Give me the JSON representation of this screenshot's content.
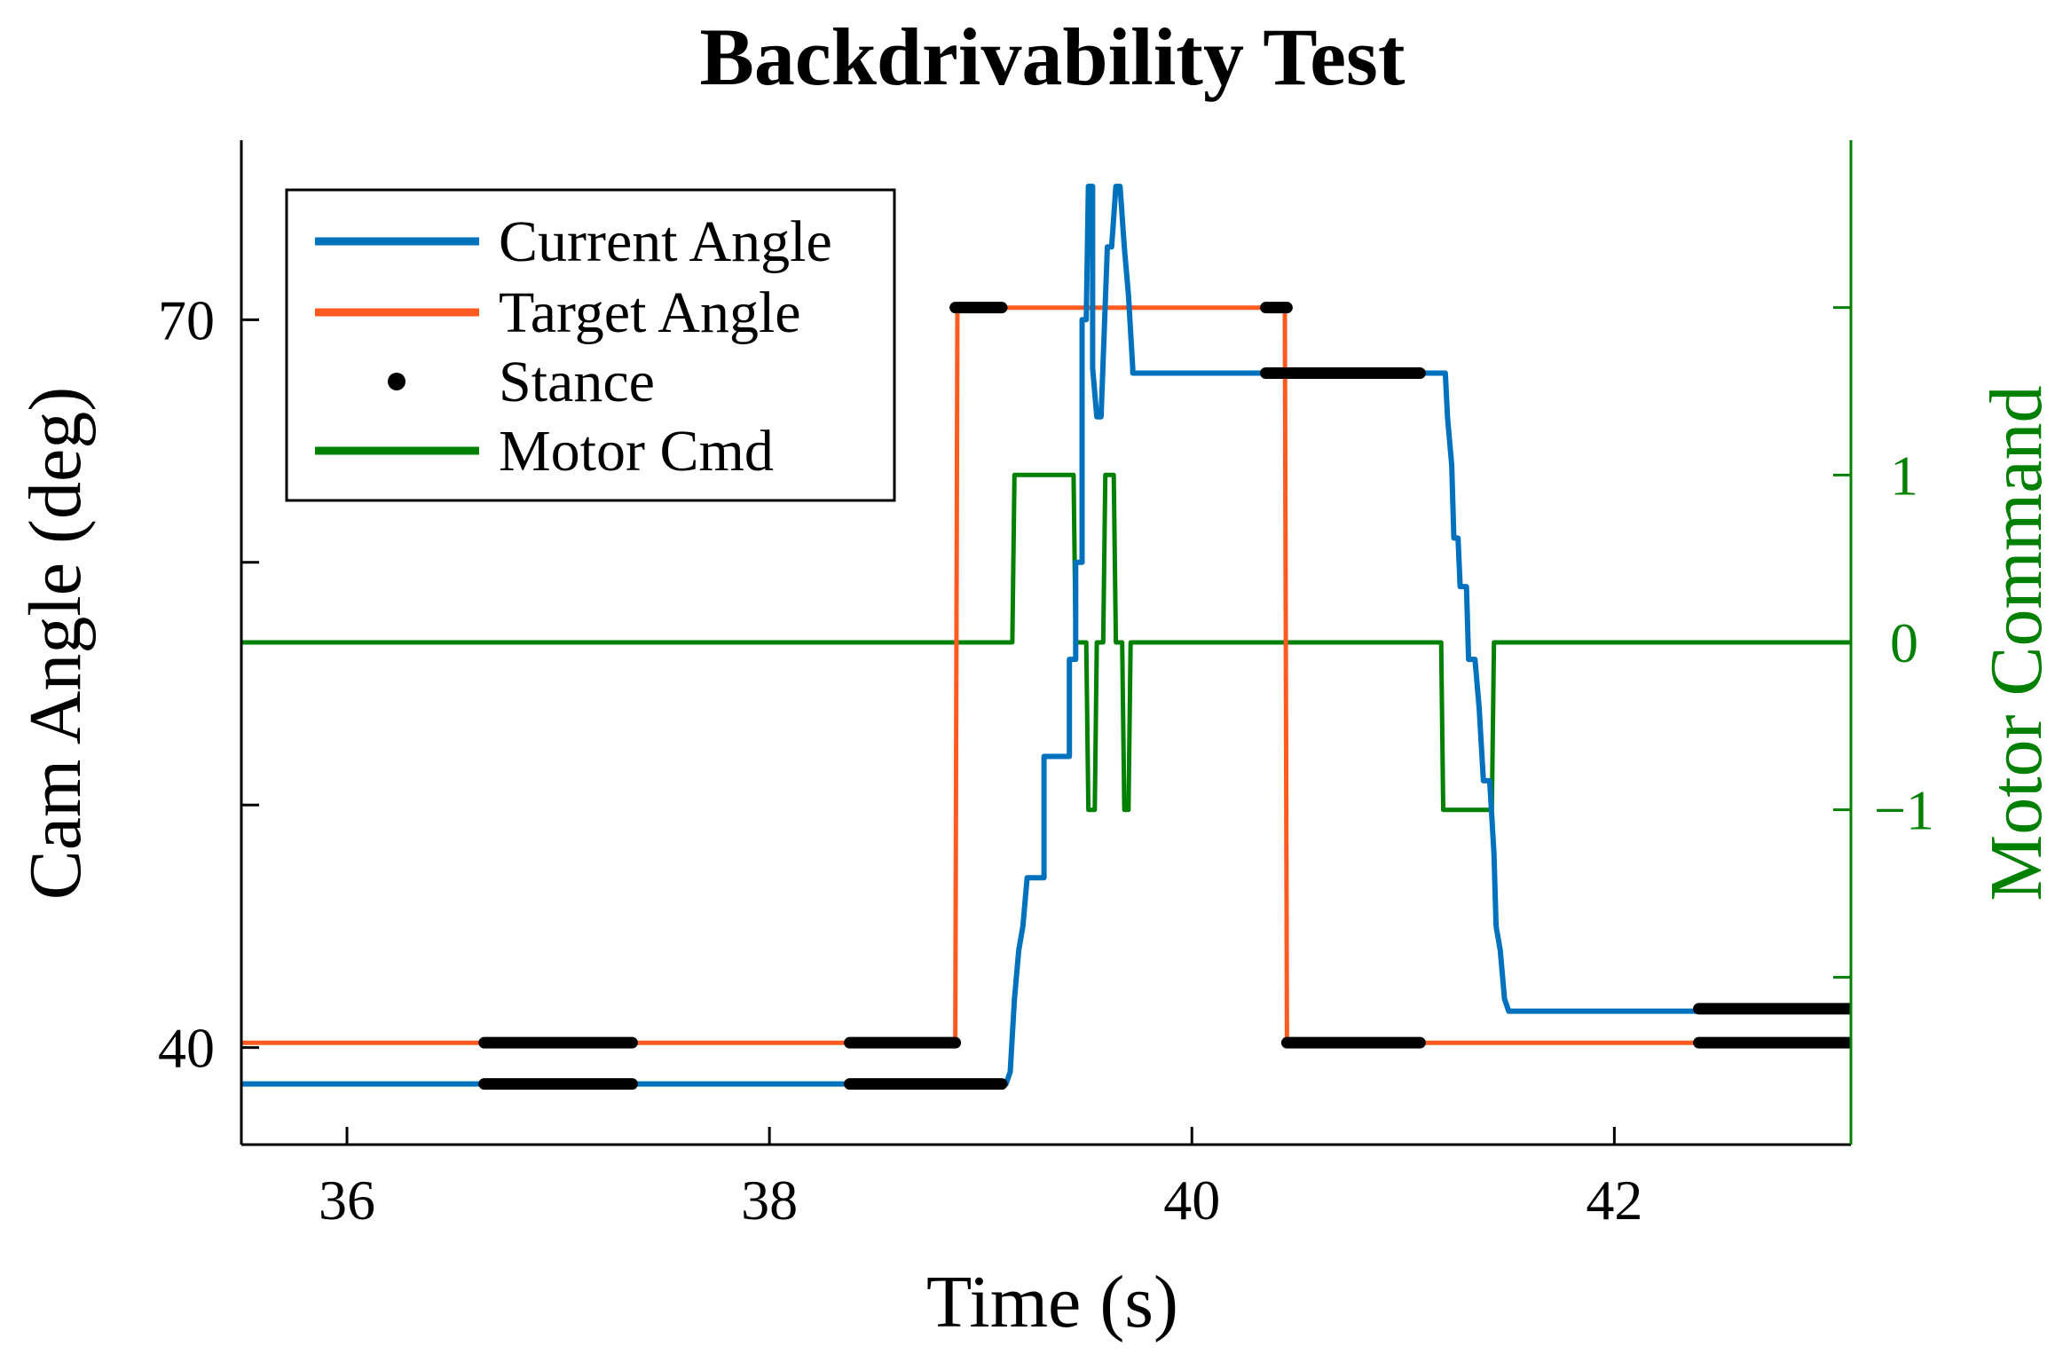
{
  "chart_data": {
    "type": "line",
    "title": "Backdrivability Test",
    "xlabel": "Time (s)",
    "ylabel": "Cam Angle (deg)",
    "ylabel_right": "Motor Command",
    "xlim": [
      35.5,
      43.12
    ],
    "ylim": [
      36,
      77.4
    ],
    "ylim_right": [
      -3,
      3
    ],
    "x_ticks": [
      36,
      38,
      40,
      42
    ],
    "x_tick_labels": [
      "36",
      "38",
      "40",
      "42"
    ],
    "y_ticks": [
      40,
      50,
      60,
      70
    ],
    "y_tick_labels": [
      "40",
      "",
      "",
      "70"
    ],
    "y_right_ticks": [
      -2,
      -1,
      0,
      1,
      2
    ],
    "y_right_tick_labels": [
      "",
      "−1",
      "0",
      "1",
      ""
    ],
    "legend_position": "top-left",
    "colors": {
      "current": "#0072BD",
      "target": "#FF5A1F",
      "stance": "#000000",
      "motor": "#008000",
      "axis": "#000000",
      "right_axis": "#008000"
    },
    "series": [
      {
        "name": "Current Angle",
        "axis": "left",
        "x": [
          35.5,
          39.12,
          39.14,
          39.16,
          39.18,
          39.2,
          39.22,
          39.3,
          39.3,
          39.42,
          39.42,
          39.45,
          39.45,
          39.48,
          39.48,
          39.5,
          39.51,
          39.53,
          39.53,
          39.55,
          39.57,
          39.6,
          39.62,
          39.64,
          39.66,
          39.68,
          39.7,
          39.72,
          39.72,
          40.4,
          40.42,
          41.2,
          41.21,
          41.23,
          41.24,
          41.26,
          41.27,
          41.3,
          41.31,
          41.34,
          41.36,
          41.38,
          41.41,
          41.43,
          41.44,
          41.46,
          41.48,
          41.5,
          41.52,
          42.4,
          42.45,
          43.12
        ],
        "y": [
          38.5,
          38.5,
          39,
          42,
          44,
          45,
          47,
          47,
          52,
          52,
          56,
          56,
          60,
          60,
          70,
          70,
          75.5,
          75.5,
          68,
          66,
          66,
          73,
          73,
          75.5,
          75.5,
          73,
          71,
          68,
          67.8,
          67.8,
          67.8,
          67.8,
          66,
          64,
          61,
          61,
          59,
          59,
          56,
          56,
          54,
          51,
          51,
          48,
          45,
          44,
          42,
          41.5,
          41.5,
          41.5,
          41.6,
          41.6
        ]
      },
      {
        "name": "Target Angle",
        "axis": "left",
        "x": [
          35.5,
          38.88,
          38.89,
          40.44,
          40.45,
          43.12
        ],
        "y": [
          40.2,
          40.2,
          70.5,
          70.5,
          40.2,
          40.2
        ]
      },
      {
        "name": "Motor Cmd",
        "axis": "right",
        "x": [
          35.5,
          39.15,
          39.16,
          39.44,
          39.45,
          39.5,
          39.51,
          39.54,
          39.55,
          39.58,
          39.59,
          39.63,
          39.64,
          39.67,
          39.68,
          39.7,
          39.71,
          41.18,
          41.19,
          41.42,
          41.43,
          43.12
        ],
        "y": [
          0,
          0,
          1,
          1,
          0,
          0,
          -1,
          -1,
          0,
          0,
          1,
          1,
          0,
          0,
          -1,
          -1,
          0,
          0,
          -1,
          -1,
          0,
          0
        ]
      }
    ],
    "stance": {
      "name": "Stance",
      "segments": [
        {
          "x0": 36.65,
          "x1": 37.35,
          "y": 40.2
        },
        {
          "x0": 36.65,
          "x1": 37.35,
          "y": 38.5
        },
        {
          "x0": 38.38,
          "x1": 38.88,
          "y": 40.2
        },
        {
          "x0": 38.38,
          "x1": 39.1,
          "y": 38.5
        },
        {
          "x0": 38.88,
          "x1": 39.1,
          "y": 70.5
        },
        {
          "x0": 40.35,
          "x1": 40.45,
          "y": 70.5
        },
        {
          "x0": 40.35,
          "x1": 41.08,
          "y": 67.8
        },
        {
          "x0": 40.45,
          "x1": 41.08,
          "y": 40.2
        },
        {
          "x0": 42.4,
          "x1": 43.12,
          "y": 41.6
        },
        {
          "x0": 42.4,
          "x1": 43.12,
          "y": 40.2
        }
      ]
    },
    "legend": [
      "Current Angle",
      "Target Angle",
      "Stance",
      "Motor Cmd"
    ]
  }
}
